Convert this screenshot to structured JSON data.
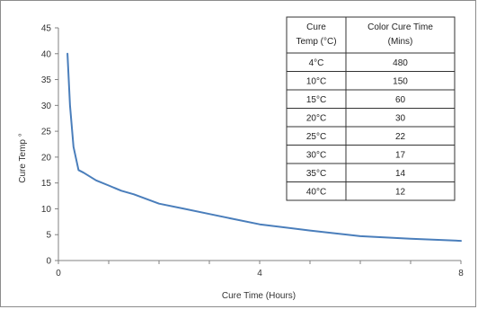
{
  "chart_data": {
    "type": "line",
    "title": "",
    "xlabel": "Cure Time (Hours)",
    "ylabel": "Cure Temp °",
    "xlim": [
      0,
      8
    ],
    "ylim": [
      0,
      45
    ],
    "x_ticks": [
      "0",
      "4",
      "8"
    ],
    "y_ticks": [
      "0",
      "5",
      "10",
      "15",
      "20",
      "25",
      "30",
      "35",
      "40",
      "45"
    ],
    "grid": false,
    "line_color": "#4a7ebb",
    "series": [
      {
        "x": [
          0.18,
          0.23,
          0.3,
          0.4,
          0.5,
          0.75,
          1.0,
          1.25,
          1.5,
          2.0,
          2.5,
          3.0,
          3.5,
          4.0,
          5.0,
          6.0,
          7.0,
          8.0
        ],
        "y": [
          40,
          30,
          22,
          17.5,
          17,
          15.5,
          14.5,
          13.5,
          12.8,
          11,
          10,
          9,
          8,
          7,
          5.8,
          4.7,
          4.2,
          3.8
        ]
      }
    ],
    "table": {
      "headers": [
        [
          "Cure",
          "Temp (°C)"
        ],
        [
          "Color Cure Time",
          "(Mins)"
        ]
      ],
      "rows": [
        [
          "4°C",
          "480"
        ],
        [
          "10°C",
          "150"
        ],
        [
          "15°C",
          "60"
        ],
        [
          "20°C",
          "30"
        ],
        [
          "25°C",
          "22"
        ],
        [
          "30°C",
          "17"
        ],
        [
          "35°C",
          "14"
        ],
        [
          "40°C",
          "12"
        ]
      ]
    }
  }
}
